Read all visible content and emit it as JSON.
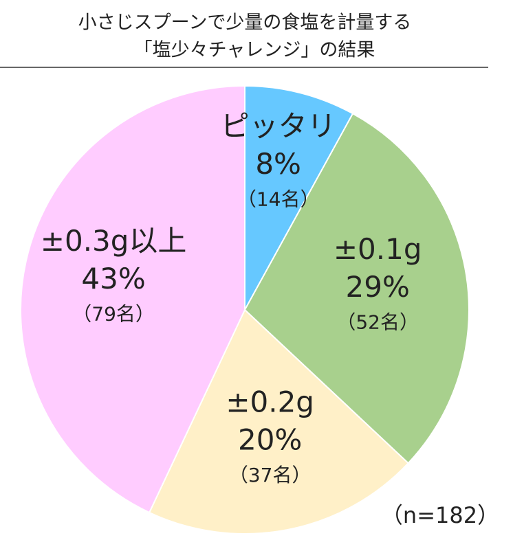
{
  "chart_data": {
    "type": "pie",
    "title": [
      "小さじスプーンで少量の食塩を計量する",
      "「塩少々チャレンジ」の結果"
    ],
    "categories": [
      "ピッタリ",
      "±0.1g",
      "±0.2g",
      "±0.3g以上"
    ],
    "values": [
      8,
      29,
      20,
      43
    ],
    "value_labels": [
      "8%",
      "29%",
      "20%",
      "43%"
    ],
    "count_labels": [
      "（14名）",
      "（52名）",
      "（37名）",
      "（79名）"
    ],
    "colors": [
      "#66c8ff",
      "#a8d08d",
      "#fff0c8",
      "#ffccff"
    ],
    "annotation": "（n=182）"
  }
}
